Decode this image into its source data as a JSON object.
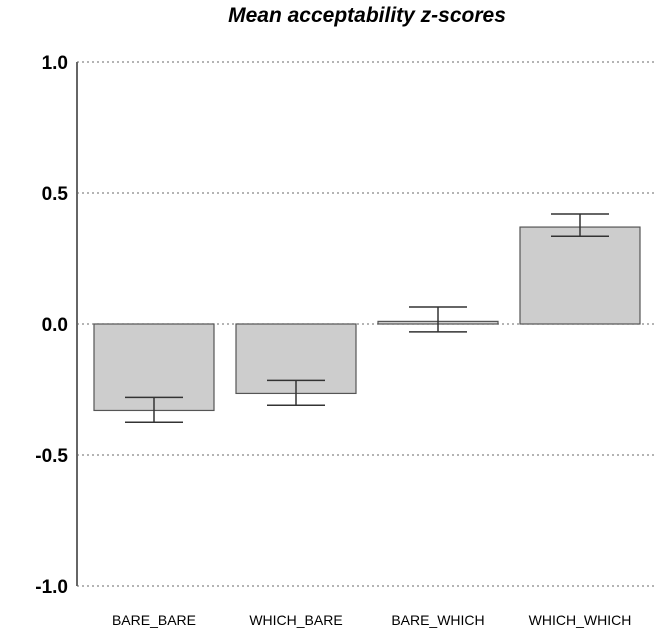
{
  "chart_data": {
    "type": "bar",
    "title": "Mean acceptability z-scores",
    "xlabel": "",
    "ylabel": "",
    "categories": [
      "BARE_BARE",
      "WHICH_BARE",
      "BARE_WHICH",
      "WHICH_WHICH"
    ],
    "values": [
      -0.33,
      -0.265,
      0.01,
      0.37
    ],
    "error_bars": [
      {
        "low": -0.375,
        "high": -0.28
      },
      {
        "low": -0.31,
        "high": -0.215
      },
      {
        "low": -0.03,
        "high": 0.065
      },
      {
        "low": 0.335,
        "high": 0.42
      }
    ],
    "ylim": [
      -1.0,
      1.0
    ],
    "yticks": [
      1.0,
      0.5,
      0.0,
      -0.5,
      -1.0
    ],
    "ytick_labels": [
      "1.0",
      "0.5",
      "0.0",
      "-0.5",
      "-1.0"
    ],
    "grid": "horizontal-dotted",
    "legend": "none",
    "colors": {
      "bar_fill": "#cdcdcd",
      "bar_stroke": "#555555",
      "axis": "#666666",
      "grid": "#888888",
      "error_bar": "#333333"
    }
  }
}
